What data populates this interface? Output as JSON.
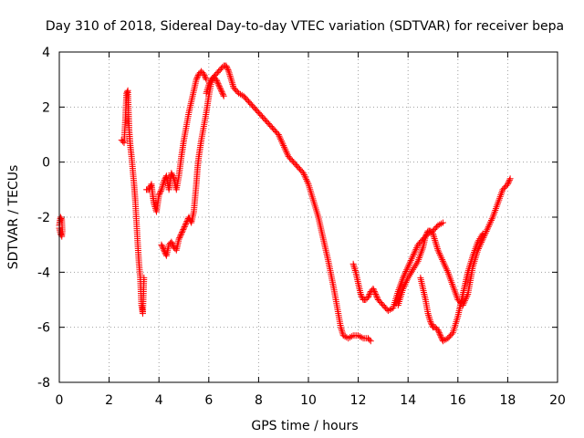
{
  "chart_data": {
    "type": "scatter",
    "title": "Day 310 of 2018, Sidereal Day-to-day VTEC variation (SDTVAR) for receiver bepa",
    "xlabel": "GPS time / hours",
    "ylabel": "SDTVAR / TECUs",
    "xlim": [
      0,
      20
    ],
    "ylim": [
      -8,
      4
    ],
    "xticks": [
      0,
      2,
      4,
      6,
      8,
      10,
      12,
      14,
      16,
      18,
      20
    ],
    "yticks": [
      -8,
      -6,
      -4,
      -2,
      0,
      2,
      4
    ],
    "xtick_labels": [
      "0",
      "2",
      "4",
      "6",
      "8",
      "10",
      "12",
      "14",
      "16",
      "18",
      "20"
    ],
    "ytick_labels": [
      "-8",
      "-6",
      "-4",
      "-2",
      "0",
      "2",
      "4"
    ],
    "grid": true,
    "marker": "+",
    "color": "#ff0000",
    "series": [
      {
        "name": "SDTVAR",
        "segments": [
          [
            [
              0.0,
              -2.3
            ],
            [
              0.05,
              -2.0
            ],
            [
              0.1,
              -2.1
            ],
            [
              0.12,
              -2.5
            ],
            [
              0.1,
              -2.7
            ],
            [
              0.05,
              -2.6
            ],
            [
              0.0,
              -2.4
            ]
          ],
          [
            [
              2.5,
              0.8
            ],
            [
              2.6,
              0.7
            ],
            [
              2.65,
              1.5
            ],
            [
              2.7,
              2.5
            ],
            [
              2.75,
              2.6
            ],
            [
              2.78,
              1.8
            ],
            [
              2.8,
              1.2
            ],
            [
              2.85,
              0.6
            ],
            [
              2.9,
              0.2
            ],
            [
              2.95,
              -0.3
            ],
            [
              3.0,
              -0.8
            ],
            [
              3.05,
              -1.4
            ],
            [
              3.1,
              -2.2
            ],
            [
              3.15,
              -3.0
            ],
            [
              3.2,
              -3.7
            ],
            [
              3.25,
              -4.2
            ],
            [
              3.3,
              -5.2
            ],
            [
              3.35,
              -5.5
            ],
            [
              3.38,
              -4.7
            ],
            [
              3.4,
              -4.2
            ]
          ],
          [
            [
              3.5,
              -1.0
            ],
            [
              3.6,
              -1.0
            ],
            [
              3.7,
              -0.8
            ],
            [
              3.75,
              -1.2
            ],
            [
              3.8,
              -1.5
            ],
            [
              3.9,
              -1.8
            ],
            [
              4.0,
              -1.2
            ],
            [
              4.1,
              -1.0
            ],
            [
              4.2,
              -0.7
            ],
            [
              4.3,
              -0.5
            ],
            [
              4.4,
              -1.0
            ],
            [
              4.5,
              -0.4
            ],
            [
              4.6,
              -0.6
            ],
            [
              4.7,
              -1.0
            ],
            [
              4.8,
              -0.5
            ],
            [
              4.9,
              0.2
            ],
            [
              5.0,
              0.8
            ],
            [
              5.1,
              1.3
            ],
            [
              5.2,
              1.8
            ],
            [
              5.3,
              2.2
            ],
            [
              5.4,
              2.6
            ],
            [
              5.5,
              3.0
            ],
            [
              5.6,
              3.2
            ],
            [
              5.7,
              3.3
            ],
            [
              5.8,
              3.2
            ],
            [
              5.9,
              3.0
            ]
          ],
          [
            [
              4.1,
              -3.0
            ],
            [
              4.2,
              -3.2
            ],
            [
              4.3,
              -3.4
            ],
            [
              4.4,
              -3.0
            ],
            [
              4.5,
              -2.9
            ],
            [
              4.6,
              -3.1
            ],
            [
              4.7,
              -3.2
            ],
            [
              4.8,
              -2.8
            ],
            [
              4.9,
              -2.6
            ],
            [
              5.0,
              -2.4
            ],
            [
              5.1,
              -2.2
            ],
            [
              5.2,
              -2.0
            ],
            [
              5.3,
              -2.2
            ],
            [
              5.4,
              -1.8
            ],
            [
              5.5,
              -0.8
            ],
            [
              5.55,
              -0.2
            ],
            [
              5.6,
              0.2
            ],
            [
              5.7,
              0.8
            ],
            [
              5.8,
              1.3
            ],
            [
              5.9,
              1.8
            ],
            [
              6.0,
              2.4
            ],
            [
              6.1,
              2.9
            ],
            [
              6.2,
              3.1
            ],
            [
              6.3,
              3.0
            ],
            [
              6.4,
              2.8
            ],
            [
              6.5,
              2.6
            ],
            [
              6.6,
              2.4
            ]
          ],
          [
            [
              5.9,
              2.5
            ],
            [
              6.0,
              2.8
            ],
            [
              6.1,
              3.0
            ],
            [
              6.2,
              3.1
            ],
            [
              6.3,
              3.2
            ],
            [
              6.4,
              3.3
            ],
            [
              6.5,
              3.4
            ],
            [
              6.6,
              3.5
            ],
            [
              6.7,
              3.5
            ],
            [
              6.8,
              3.3
            ],
            [
              6.9,
              3.0
            ],
            [
              7.0,
              2.7
            ],
            [
              7.2,
              2.5
            ],
            [
              7.4,
              2.4
            ],
            [
              7.6,
              2.2
            ],
            [
              7.8,
              2.0
            ],
            [
              8.0,
              1.8
            ],
            [
              8.2,
              1.6
            ],
            [
              8.4,
              1.4
            ],
            [
              8.6,
              1.2
            ],
            [
              8.8,
              1.0
            ],
            [
              9.0,
              0.6
            ],
            [
              9.2,
              0.2
            ],
            [
              9.4,
              0.0
            ],
            [
              9.6,
              -0.2
            ],
            [
              9.8,
              -0.4
            ],
            [
              10.0,
              -0.8
            ],
            [
              10.2,
              -1.4
            ],
            [
              10.4,
              -2.0
            ],
            [
              10.6,
              -2.8
            ],
            [
              10.8,
              -3.6
            ],
            [
              11.0,
              -4.5
            ],
            [
              11.2,
              -5.5
            ],
            [
              11.3,
              -6.0
            ],
            [
              11.4,
              -6.3
            ],
            [
              11.6,
              -6.4
            ],
            [
              11.8,
              -6.3
            ],
            [
              12.0,
              -6.3
            ],
            [
              12.2,
              -6.4
            ],
            [
              12.4,
              -6.4
            ],
            [
              12.5,
              -6.5
            ]
          ],
          [
            [
              11.8,
              -3.7
            ],
            [
              11.9,
              -4.0
            ],
            [
              12.0,
              -4.4
            ],
            [
              12.1,
              -4.8
            ],
            [
              12.2,
              -5.0
            ],
            [
              12.3,
              -5.0
            ],
            [
              12.4,
              -4.9
            ],
            [
              12.5,
              -4.7
            ],
            [
              12.6,
              -4.6
            ],
            [
              12.7,
              -4.8
            ],
            [
              12.8,
              -5.0
            ],
            [
              12.9,
              -5.1
            ],
            [
              13.0,
              -5.2
            ],
            [
              13.2,
              -5.4
            ],
            [
              13.4,
              -5.3
            ],
            [
              13.6,
              -4.7
            ],
            [
              13.8,
              -4.2
            ],
            [
              14.0,
              -3.8
            ],
            [
              14.2,
              -3.4
            ],
            [
              14.4,
              -3.0
            ],
            [
              14.6,
              -2.8
            ],
            [
              14.8,
              -2.6
            ],
            [
              15.0,
              -2.5
            ],
            [
              15.2,
              -2.3
            ],
            [
              15.4,
              -2.2
            ]
          ],
          [
            [
              13.6,
              -5.2
            ],
            [
              13.8,
              -4.6
            ],
            [
              14.0,
              -4.2
            ],
            [
              14.2,
              -3.9
            ],
            [
              14.4,
              -3.6
            ],
            [
              14.6,
              -3.1
            ],
            [
              14.7,
              -2.7
            ],
            [
              14.8,
              -2.5
            ],
            [
              14.9,
              -2.5
            ],
            [
              15.0,
              -2.6
            ],
            [
              15.1,
              -2.9
            ],
            [
              15.2,
              -3.2
            ],
            [
              15.4,
              -3.6
            ],
            [
              15.6,
              -4.0
            ],
            [
              15.8,
              -4.5
            ],
            [
              16.0,
              -5.0
            ],
            [
              16.2,
              -5.2
            ],
            [
              16.4,
              -4.8
            ],
            [
              16.6,
              -3.8
            ],
            [
              16.8,
              -3.2
            ],
            [
              17.0,
              -2.8
            ],
            [
              17.2,
              -2.4
            ],
            [
              17.4,
              -2.0
            ],
            [
              17.6,
              -1.5
            ],
            [
              17.8,
              -1.0
            ],
            [
              18.0,
              -0.8
            ],
            [
              18.1,
              -0.6
            ]
          ],
          [
            [
              14.5,
              -4.2
            ],
            [
              14.6,
              -4.6
            ],
            [
              14.7,
              -5.0
            ],
            [
              14.8,
              -5.5
            ],
            [
              14.9,
              -5.8
            ],
            [
              15.0,
              -6.0
            ],
            [
              15.1,
              -6.0
            ],
            [
              15.2,
              -6.1
            ],
            [
              15.3,
              -6.3
            ],
            [
              15.4,
              -6.5
            ],
            [
              15.6,
              -6.4
            ],
            [
              15.8,
              -6.2
            ],
            [
              16.0,
              -5.6
            ],
            [
              16.2,
              -4.8
            ],
            [
              16.4,
              -4.0
            ],
            [
              16.6,
              -3.4
            ],
            [
              16.8,
              -2.9
            ],
            [
              17.0,
              -2.6
            ]
          ]
        ]
      }
    ]
  }
}
